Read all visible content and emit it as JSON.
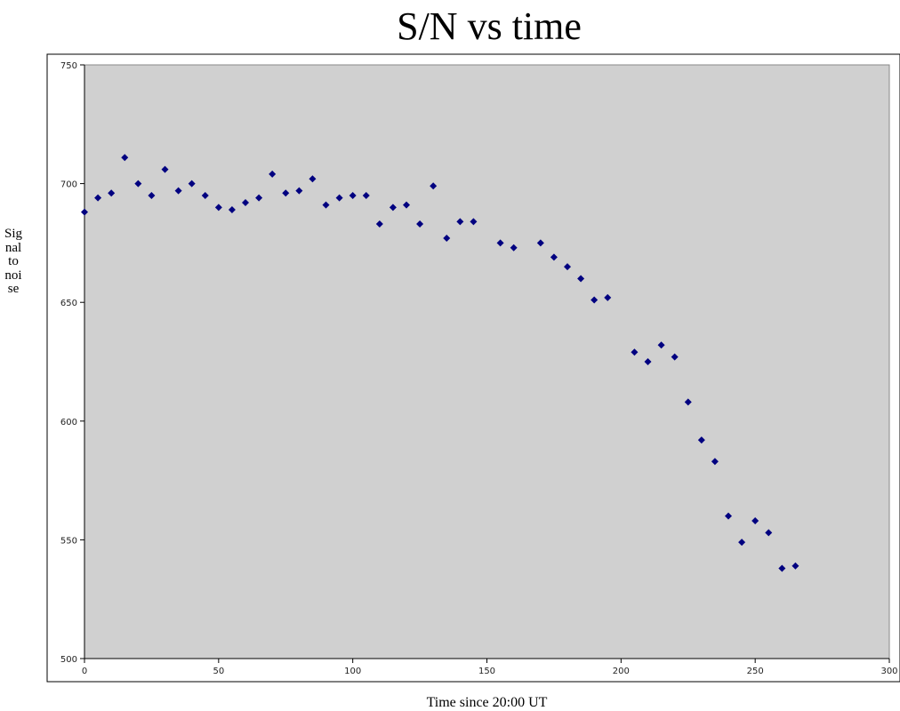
{
  "chart_data": {
    "type": "scatter",
    "title": "S/N vs time",
    "xlabel": "Time since 20:00 UT",
    "ylabel": "Signal to noise",
    "xlim": [
      0,
      300
    ],
    "ylim": [
      500,
      750
    ],
    "xticks": [
      0,
      50,
      100,
      150,
      200,
      250,
      300
    ],
    "yticks": [
      500,
      550,
      600,
      650,
      700,
      750
    ],
    "xtick_labels": [
      "0",
      "50",
      "100",
      "150",
      "200",
      "250",
      "300"
    ],
    "ytick_labels": [
      "500",
      "550",
      "600",
      "650",
      "700",
      "750"
    ],
    "grid": false,
    "plot_background": "#d0d0d0",
    "marker_color": "#000080",
    "series": [
      {
        "x": [
          0,
          5,
          10,
          15,
          20,
          25,
          30,
          35,
          40,
          45,
          50,
          55,
          60,
          65,
          70,
          75,
          80,
          85,
          90,
          95,
          100,
          105,
          110,
          115,
          120,
          125,
          130,
          135,
          140,
          145,
          155,
          160,
          170,
          175,
          180,
          185,
          190,
          195,
          205,
          210,
          215,
          220,
          225,
          230,
          235,
          240,
          245,
          250,
          255,
          260,
          265
        ],
        "y": [
          688,
          694,
          696,
          711,
          700,
          695,
          706,
          697,
          700,
          695,
          690,
          689,
          692,
          694,
          704,
          696,
          697,
          702,
          691,
          694,
          695,
          695,
          683,
          690,
          691,
          683,
          699,
          677,
          684,
          684,
          675,
          673,
          675,
          669,
          665,
          660,
          651,
          652,
          629,
          625,
          632,
          627,
          608,
          592,
          583,
          560,
          549,
          558,
          553,
          538,
          539
        ]
      }
    ]
  }
}
